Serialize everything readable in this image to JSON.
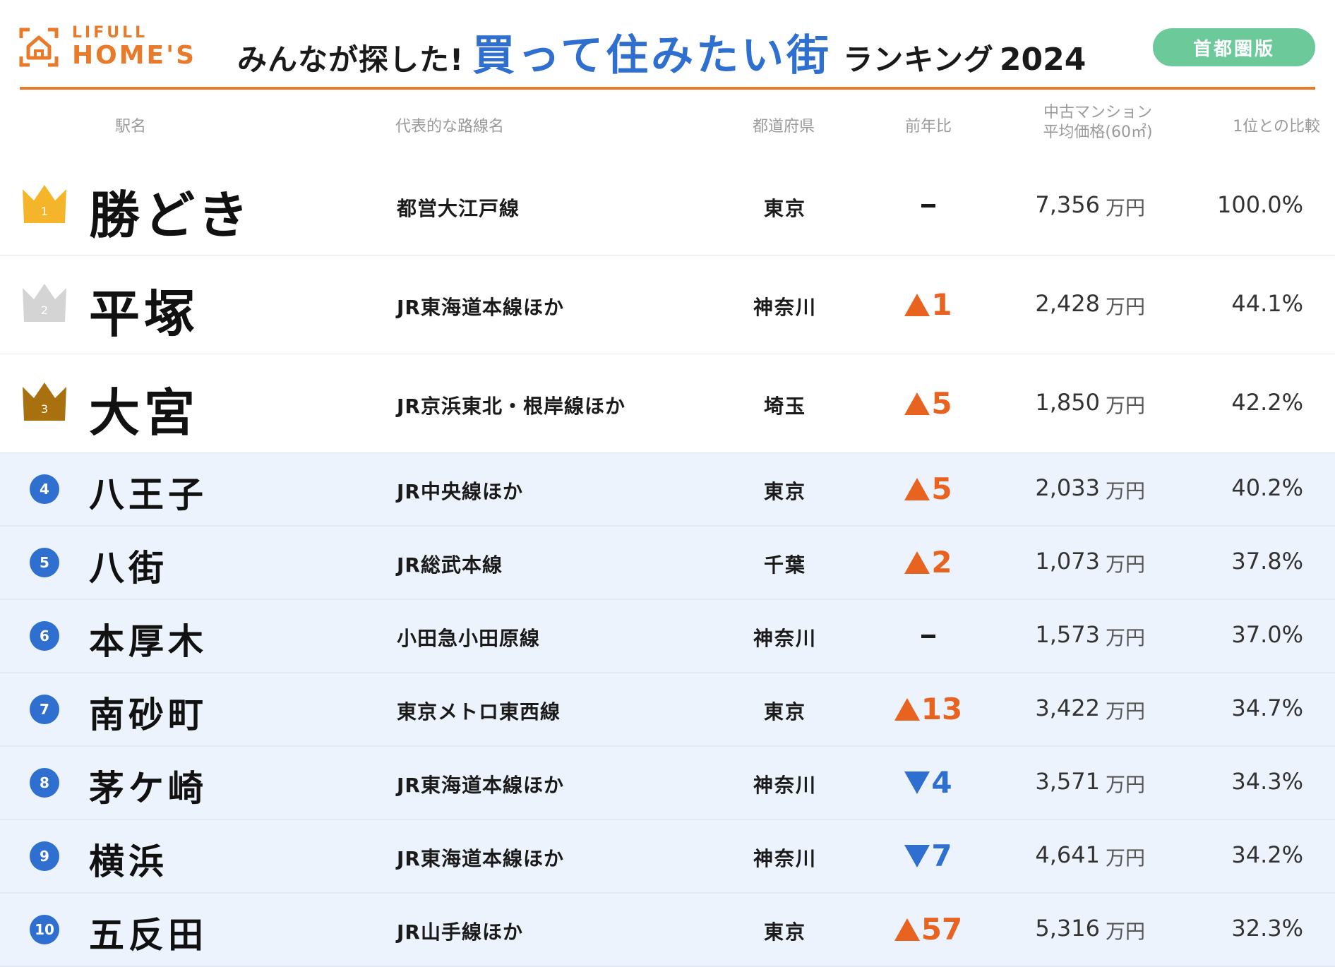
{
  "logo": {
    "small": "LIFULL",
    "big": "HOME'S"
  },
  "title": {
    "pre": "みんなが探した!",
    "main": "買って住みたい街",
    "post": "ランキング",
    "year": "2024"
  },
  "region": "首都圏版",
  "columns": {
    "station": "駅名",
    "line": "代表的な路線名",
    "prefecture": "都道府県",
    "yoy": "前年比",
    "price_line1": "中古マンション",
    "price_line2": "平均価格(60㎡)",
    "ratio": "1位との比較"
  },
  "colors": {
    "accent_orange": "#e87a2a",
    "title_blue": "#2f6fd0",
    "badge_green": "#6cc99a",
    "up_orange": "#e8631f",
    "down_blue": "#2f6fd0",
    "gold": "#f5b52a",
    "silver": "#d4d4d4",
    "bronze": "#a8700f"
  },
  "rows": [
    {
      "rank": "1",
      "station": "勝どき",
      "line": "都営大江戸線",
      "prefecture": "東京",
      "yoy_dir": "none",
      "yoy": "",
      "price": "7,356",
      "unit": "万円",
      "ratio": "100.0%",
      "crown": "gold"
    },
    {
      "rank": "2",
      "station": "平塚",
      "line": "JR東海道本線ほか",
      "prefecture": "神奈川",
      "yoy_dir": "up",
      "yoy": "1",
      "price": "2,428",
      "unit": "万円",
      "ratio": "44.1%",
      "crown": "silver"
    },
    {
      "rank": "3",
      "station": "大宮",
      "line": "JR京浜東北・根岸線ほか",
      "prefecture": "埼玉",
      "yoy_dir": "up",
      "yoy": "5",
      "price": "1,850",
      "unit": "万円",
      "ratio": "42.2%",
      "crown": "bronze"
    },
    {
      "rank": "4",
      "station": "八王子",
      "line": "JR中央線ほか",
      "prefecture": "東京",
      "yoy_dir": "up",
      "yoy": "5",
      "price": "2,033",
      "unit": "万円",
      "ratio": "40.2%"
    },
    {
      "rank": "5",
      "station": "八街",
      "line": "JR総武本線",
      "prefecture": "千葉",
      "yoy_dir": "up",
      "yoy": "2",
      "price": "1,073",
      "unit": "万円",
      "ratio": "37.8%"
    },
    {
      "rank": "6",
      "station": "本厚木",
      "line": "小田急小田原線",
      "prefecture": "神奈川",
      "yoy_dir": "none",
      "yoy": "",
      "price": "1,573",
      "unit": "万円",
      "ratio": "37.0%"
    },
    {
      "rank": "7",
      "station": "南砂町",
      "line": "東京メトロ東西線",
      "prefecture": "東京",
      "yoy_dir": "up",
      "yoy": "13",
      "price": "3,422",
      "unit": "万円",
      "ratio": "34.7%"
    },
    {
      "rank": "8",
      "station": "茅ケ崎",
      "line": "JR東海道本線ほか",
      "prefecture": "神奈川",
      "yoy_dir": "down",
      "yoy": "4",
      "price": "3,571",
      "unit": "万円",
      "ratio": "34.3%"
    },
    {
      "rank": "9",
      "station": "横浜",
      "line": "JR東海道本線ほか",
      "prefecture": "神奈川",
      "yoy_dir": "down",
      "yoy": "7",
      "price": "4,641",
      "unit": "万円",
      "ratio": "34.2%"
    },
    {
      "rank": "10",
      "station": "五反田",
      "line": "JR山手線ほか",
      "prefecture": "東京",
      "yoy_dir": "up",
      "yoy": "57",
      "price": "5,316",
      "unit": "万円",
      "ratio": "32.3%"
    }
  ]
}
